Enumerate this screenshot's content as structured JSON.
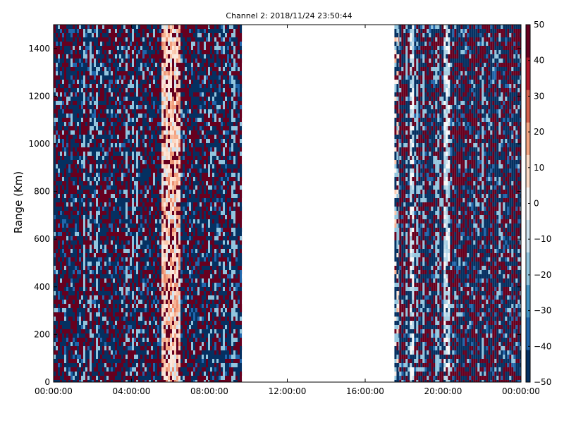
{
  "chart_data": {
    "type": "heatmap",
    "title": "Channel 2: 2018/11/24 23:50:44",
    "xlabel": "",
    "ylabel": "Range (Km)",
    "x_ticks": [
      "00:00:00",
      "04:00:00",
      "08:00:00",
      "12:00:00",
      "16:00:00",
      "20:00:00",
      "00:00:00"
    ],
    "x_range_hours": [
      0,
      24
    ],
    "y_ticks": [
      0,
      200,
      400,
      600,
      800,
      1000,
      1200,
      1400
    ],
    "ylim": [
      0,
      1500
    ],
    "colorbar": {
      "ticks": [
        50,
        40,
        30,
        20,
        10,
        0,
        -10,
        -20,
        -30,
        -40,
        -50
      ],
      "range": [
        -50,
        50
      ],
      "colormap": "RdBu_r",
      "colors": [
        "#053061",
        "#2166ac",
        "#4393c3",
        "#92c5de",
        "#d1e5f0",
        "#f7f7f7",
        "#fddbc7",
        "#f4a582",
        "#d6604d",
        "#b2182b",
        "#67001f"
      ]
    },
    "data_segments": [
      {
        "start_hour": 0.0,
        "end_hour": 9.67,
        "pattern": "noise (mostly saturated ±50)",
        "band": {
          "start_hour": 5.5,
          "end_hour": 6.5,
          "approx_value": 15
        }
      },
      {
        "start_hour": 17.5,
        "end_hour": 17.75,
        "pattern": "narrow column with scattered extreme values"
      },
      {
        "start_hour": 17.75,
        "end_hour": 24.0,
        "pattern": "noise (mixed; light bands near 20:00–21:20)"
      }
    ],
    "gap": {
      "start_hour": 9.67,
      "end_hour": 17.5,
      "description": "no data"
    },
    "grid": false,
    "legend": "none"
  }
}
